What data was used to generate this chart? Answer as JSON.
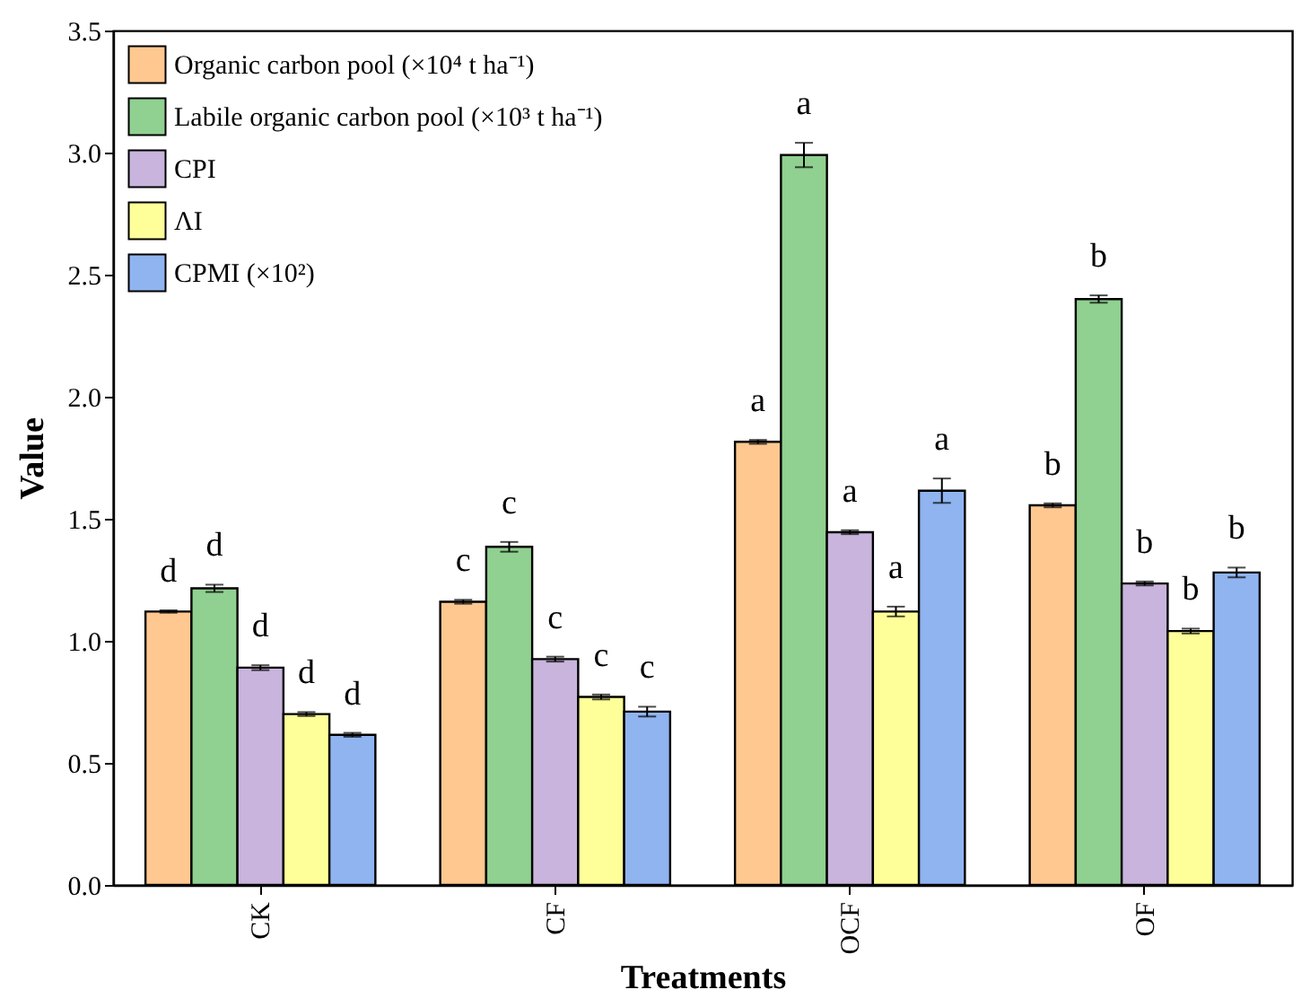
{
  "chart_data": {
    "type": "bar",
    "xlabel": "Treatments",
    "ylabel": "Value",
    "categories": [
      "CK",
      "CF",
      "OCF",
      "OF"
    ],
    "ylim": [
      0,
      3.5
    ],
    "yticks": [
      {
        "value": 0,
        "label": "0.0"
      },
      {
        "value": 0.5,
        "label": "0.5"
      },
      {
        "value": 1,
        "label": "1.0"
      },
      {
        "value": 1.5,
        "label": "1.5"
      },
      {
        "value": 2,
        "label": "2.0"
      },
      {
        "value": 2.5,
        "label": "2.5"
      },
      {
        "value": 3,
        "label": "3.0"
      },
      {
        "value": 3.5,
        "label": "3.5"
      }
    ],
    "grid": false,
    "legend": "top left",
    "series": [
      {
        "name": "Organic carbon pool (×10⁴ t ha⁻¹)",
        "color": "#ffc890",
        "values": [
          1.12,
          1.16,
          1.815,
          1.555
        ],
        "errors": [
          0.005,
          0.008,
          0.008,
          0.008
        ],
        "value_labels": [
          "d",
          "c",
          "a",
          "b"
        ]
      },
      {
        "name": "Labile organic carbon pool (×10³ t ha⁻¹)",
        "color": "#90d090",
        "values": [
          1.215,
          1.385,
          2.99,
          2.4
        ],
        "errors": [
          0.015,
          0.02,
          0.05,
          0.015
        ],
        "value_labels": [
          "d",
          "c",
          "a",
          "b"
        ]
      },
      {
        "name": "CPI",
        "color": "#c8b4dc",
        "values": [
          0.89,
          0.925,
          1.445,
          1.235
        ],
        "errors": [
          0.01,
          0.01,
          0.008,
          0.008
        ],
        "value_labels": [
          "d",
          "c",
          "a",
          "b"
        ]
      },
      {
        "name": "ΛI",
        "color": "#ffff99",
        "values": [
          0.7,
          0.77,
          1.12,
          1.04
        ],
        "errors": [
          0.008,
          0.01,
          0.02,
          0.01
        ],
        "value_labels": [
          "d",
          "c",
          "a",
          "b"
        ]
      },
      {
        "name": "CPMI (×10²)",
        "color": "#90b4f0",
        "values": [
          0.615,
          0.71,
          1.615,
          1.28
        ],
        "errors": [
          0.008,
          0.02,
          0.05,
          0.02
        ],
        "value_labels": [
          "d",
          "c",
          "a",
          "b"
        ]
      }
    ]
  }
}
